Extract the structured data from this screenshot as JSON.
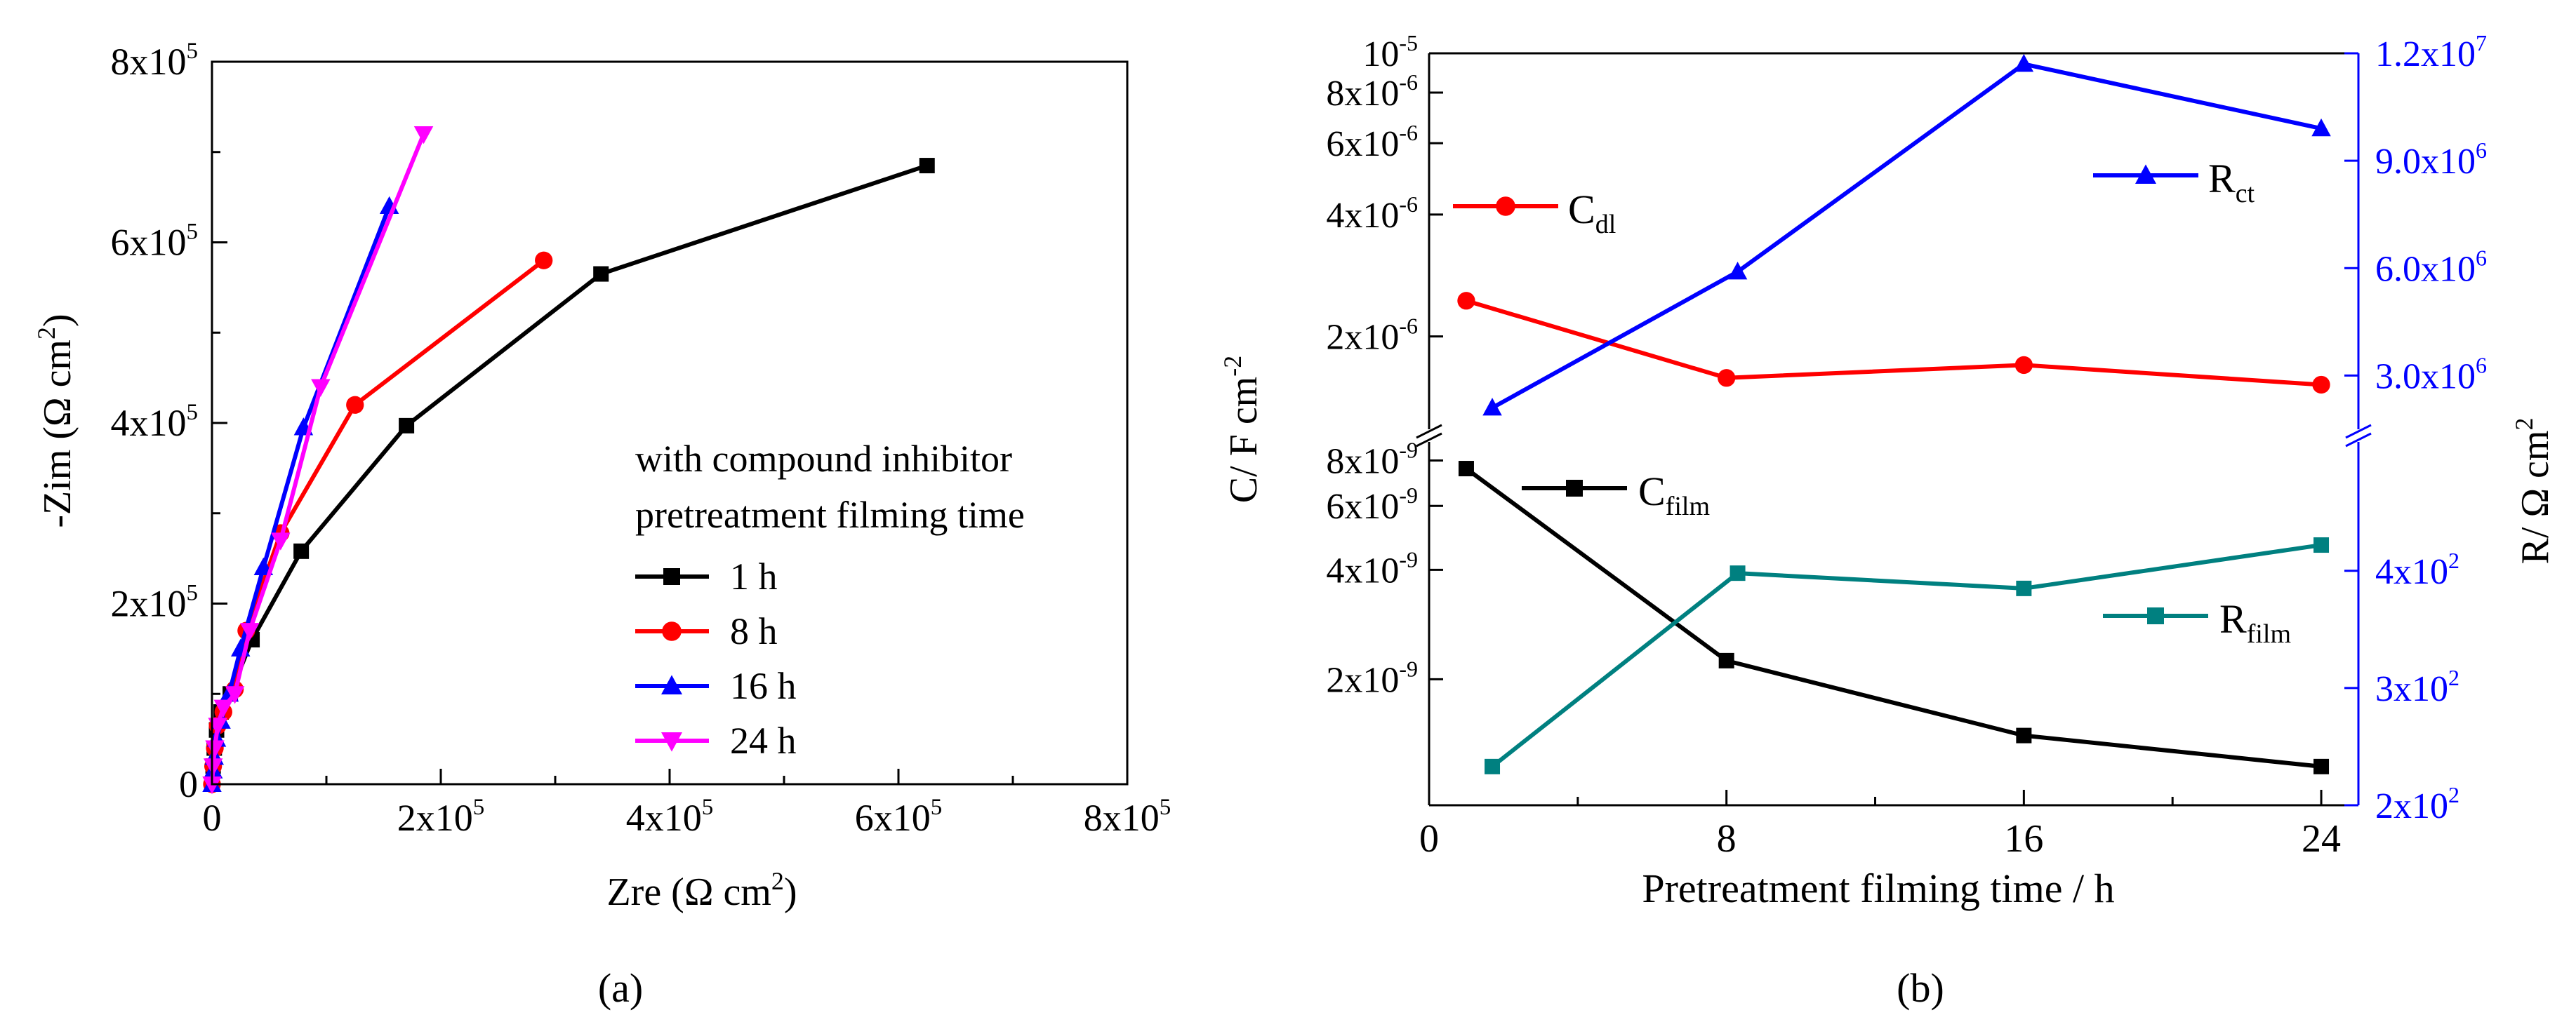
{
  "colors": {
    "axis": "#000000",
    "black": "#000000",
    "red": "#ff0000",
    "blue": "#0000ff",
    "magenta": "#ff00ff",
    "teal": "#008080"
  },
  "chart_data": [
    {
      "panel_label": "(a)",
      "type": "line",
      "xlabel": "Zre (Ω cm",
      "xlabel_sup": "2",
      "xlabel_close": ")",
      "ylabel": "-Zim (Ω cm",
      "ylabel_sup": "2",
      "ylabel_close": ")",
      "xlim": [
        0,
        800000
      ],
      "ylim": [
        0,
        800000
      ],
      "xticks": [
        {
          "value": 0,
          "mant": "0",
          "exp": ""
        },
        {
          "value": 200000,
          "mant": "2x10",
          "exp": "5"
        },
        {
          "value": 400000,
          "mant": "4x10",
          "exp": "5"
        },
        {
          "value": 600000,
          "mant": "6x10",
          "exp": "5"
        },
        {
          "value": 800000,
          "mant": "8x10",
          "exp": "5"
        }
      ],
      "yticks": [
        {
          "value": 0,
          "mant": "0",
          "exp": ""
        },
        {
          "value": 200000,
          "mant": "2x10",
          "exp": "5"
        },
        {
          "value": 400000,
          "mant": "4x10",
          "exp": "5"
        },
        {
          "value": 600000,
          "mant": "6x10",
          "exp": "5"
        },
        {
          "value": 800000,
          "mant": "8x10",
          "exp": "5"
        }
      ],
      "legend_title_1": "with compound inhibitor",
      "legend_title_2": "pretreatment filming time",
      "legend_position": "bottom-right",
      "series": [
        {
          "name": "1 h",
          "color": "#000000",
          "marker": "square",
          "x": [
            0,
            1000,
            2000,
            4000,
            8000,
            16000,
            35000,
            78000,
            170000,
            340000,
            625000
          ],
          "y": [
            0,
            20000,
            40000,
            60000,
            80000,
            100000,
            160000,
            258000,
            397000,
            565000,
            685000
          ]
        },
        {
          "name": "8 h",
          "color": "#ff0000",
          "marker": "circle",
          "x": [
            0,
            1000,
            2500,
            5000,
            10000,
            20000,
            30000,
            60000,
            125000,
            290000
          ],
          "y": [
            0,
            20000,
            40000,
            65000,
            80000,
            105000,
            170000,
            278000,
            420000,
            580000
          ],
          "highlight_last": true
        },
        {
          "name": "16 h",
          "color": "#0000ff",
          "marker": "triangle-up",
          "x": [
            0,
            1000,
            2000,
            4000,
            8000,
            15000,
            25000,
            45000,
            80000,
            155000
          ],
          "y": [
            0,
            15000,
            30000,
            50000,
            70000,
            100000,
            150000,
            240000,
            395000,
            640000
          ]
        },
        {
          "name": "24 h",
          "color": "#ff00ff",
          "marker": "triangle-down",
          "x": [
            0,
            1000,
            2500,
            5000,
            10000,
            20000,
            33000,
            60000,
            95000,
            185000
          ],
          "y": [
            0,
            20000,
            40000,
            65000,
            85000,
            100000,
            170000,
            270000,
            440000,
            720000
          ]
        }
      ]
    },
    {
      "panel_label": "(b)",
      "type": "line",
      "xlabel": "Pretreatment filming time / h",
      "xlim": [
        0,
        25
      ],
      "xticks": [
        0,
        8,
        16,
        24
      ],
      "upper": {
        "scale": "log",
        "ylim": [
          1.18e-06,
          1e-05
        ],
        "yticks": [
          {
            "value": 2e-06,
            "mant": "2x10",
            "exp": "-6"
          },
          {
            "value": 4e-06,
            "mant": "4x10",
            "exp": "-6"
          },
          {
            "value": 6e-06,
            "mant": "6x10",
            "exp": "-6"
          },
          {
            "value": 8e-06,
            "mant": "8x10",
            "exp": "-6"
          },
          {
            "value": 1e-05,
            "mant": "10",
            "exp": "-5"
          }
        ],
        "right_ylim": [
          1500000,
          12000000
        ],
        "right_yticks": [
          {
            "value": 3000000,
            "mant": "3.0x10",
            "exp": "6"
          },
          {
            "value": 6000000,
            "mant": "6.0x10",
            "exp": "6"
          },
          {
            "value": 9000000,
            "mant": "9.0x10",
            "exp": "6"
          },
          {
            "value": 12000000,
            "mant": "1.2x10",
            "exp": "7"
          }
        ]
      },
      "lower": {
        "scale": "log",
        "ylim": [
          9e-10,
          9e-09
        ],
        "yticks": [
          {
            "value": 2e-09,
            "mant": "2x10",
            "exp": "-9"
          },
          {
            "value": 4e-09,
            "mant": "4x10",
            "exp": "-9"
          },
          {
            "value": 6e-09,
            "mant": "6x10",
            "exp": "-9"
          },
          {
            "value": 8e-09,
            "mant": "8x10",
            "exp": "-9"
          }
        ],
        "right_ylim": [
          200,
          510
        ],
        "right_yticks": [
          {
            "value": 200,
            "mant": "2x10",
            "exp": "2"
          },
          {
            "value": 300,
            "mant": "3x10",
            "exp": "2"
          },
          {
            "value": 400,
            "mant": "4x10",
            "exp": "2"
          }
        ]
      },
      "left_ylabel": "C/ F cm",
      "left_ylabel_sup": "-2",
      "right_ylabel": "R/ Ω cm",
      "right_ylabel_sup": "2",
      "series": [
        {
          "name": "C",
          "sub": "dl",
          "panel": "upper",
          "axis": "left",
          "color": "#ff0000",
          "marker": "circle",
          "x": [
            1,
            8,
            16,
            24
          ],
          "y": [
            2.45e-06,
            1.58e-06,
            1.7e-06,
            1.52e-06
          ]
        },
        {
          "name": "R",
          "sub": "ct",
          "panel": "upper",
          "axis": "right",
          "color": "#0000ff",
          "marker": "triangle-up",
          "x": [
            1.7,
            8.3,
            16,
            24
          ],
          "y": [
            2100000,
            5900000,
            11700000,
            9900000
          ]
        },
        {
          "name": "C",
          "sub": "film",
          "panel": "lower",
          "axis": "left",
          "color": "#000000",
          "marker": "square",
          "x": [
            1,
            8,
            16,
            24
          ],
          "y": [
            7.6e-09,
            2.25e-09,
            1.4e-09,
            1.15e-09
          ]
        },
        {
          "name": "R",
          "sub": "film",
          "panel": "lower",
          "axis": "right",
          "color": "#008080",
          "marker": "square",
          "x": [
            1.7,
            8.3,
            16,
            24
          ],
          "y": [
            233,
            398,
            385,
            422
          ]
        }
      ]
    }
  ]
}
